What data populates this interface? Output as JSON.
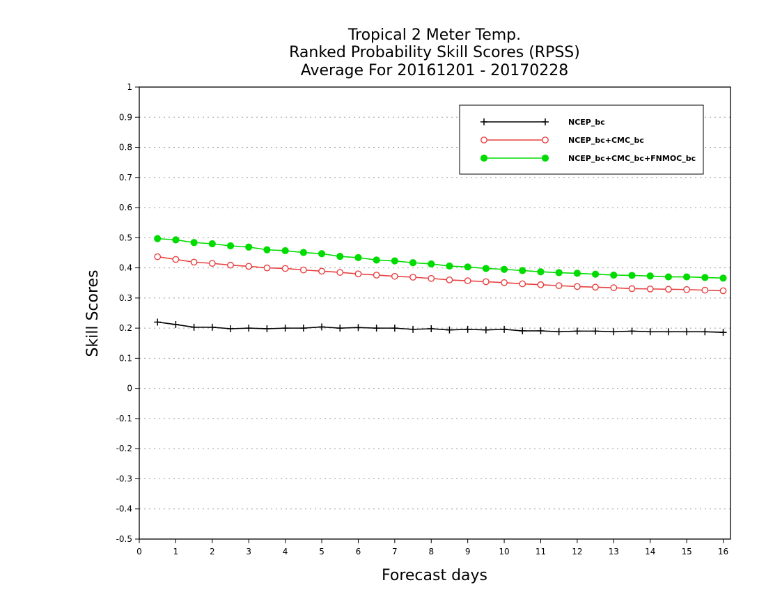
{
  "chart_data": {
    "type": "line",
    "title": [
      "Tropical 2 Meter Temp.",
      "Ranked Probability Skill Scores (RPSS)",
      "Average For 20161201 - 20170228"
    ],
    "xlabel": "Forecast days",
    "ylabel": "Skill Scores",
    "xlim": [
      0,
      16.2
    ],
    "ylim": [
      -0.5,
      1
    ],
    "x_ticks": [
      "0",
      "1",
      "2",
      "3",
      "4",
      "5",
      "6",
      "7",
      "8",
      "9",
      "10",
      "11",
      "12",
      "13",
      "14",
      "15",
      "16"
    ],
    "y_ticks": [
      "-0.5",
      "-0.4",
      "-0.3",
      "-0.2",
      "-0.1",
      "0",
      "0.1",
      "0.2",
      "0.3",
      "0.4",
      "0.5",
      "0.6",
      "0.7",
      "0.8",
      "0.9",
      "1"
    ],
    "grid": "horizontal dotted",
    "legend_position": "top-right",
    "x": [
      0.5,
      1,
      1.5,
      2,
      2.5,
      3,
      3.5,
      4,
      4.5,
      5,
      5.5,
      6,
      6.5,
      7,
      7.5,
      8,
      8.5,
      9,
      9.5,
      10,
      10.5,
      11,
      11.5,
      12,
      12.5,
      13,
      13.5,
      14,
      14.5,
      15,
      15.5,
      16
    ],
    "series": [
      {
        "name": "NCEP_bc",
        "color": "#000000",
        "marker": "plus",
        "values": [
          0.22,
          0.212,
          0.203,
          0.203,
          0.198,
          0.2,
          0.198,
          0.2,
          0.2,
          0.204,
          0.2,
          0.202,
          0.2,
          0.2,
          0.196,
          0.198,
          0.194,
          0.196,
          0.194,
          0.196,
          0.191,
          0.191,
          0.188,
          0.19,
          0.19,
          0.188,
          0.19,
          0.188,
          0.188,
          0.188,
          0.188,
          0.186
        ]
      },
      {
        "name": "NCEP_bc+CMC_bc",
        "color": "#e84040",
        "marker": "open-circle",
        "values": [
          0.437,
          0.428,
          0.419,
          0.415,
          0.409,
          0.405,
          0.4,
          0.398,
          0.393,
          0.389,
          0.385,
          0.38,
          0.376,
          0.372,
          0.369,
          0.365,
          0.36,
          0.357,
          0.354,
          0.351,
          0.347,
          0.344,
          0.341,
          0.338,
          0.336,
          0.334,
          0.331,
          0.33,
          0.329,
          0.328,
          0.326,
          0.324
        ]
      },
      {
        "name": "NCEP_bc+CMC_bc+FNMOC_bc",
        "color": "#00dc00",
        "marker": "filled-circle",
        "values": [
          0.497,
          0.493,
          0.484,
          0.48,
          0.473,
          0.469,
          0.46,
          0.457,
          0.451,
          0.447,
          0.438,
          0.434,
          0.426,
          0.423,
          0.417,
          0.413,
          0.406,
          0.403,
          0.398,
          0.395,
          0.391,
          0.387,
          0.384,
          0.382,
          0.379,
          0.376,
          0.375,
          0.373,
          0.37,
          0.37,
          0.368,
          0.366
        ]
      }
    ]
  }
}
